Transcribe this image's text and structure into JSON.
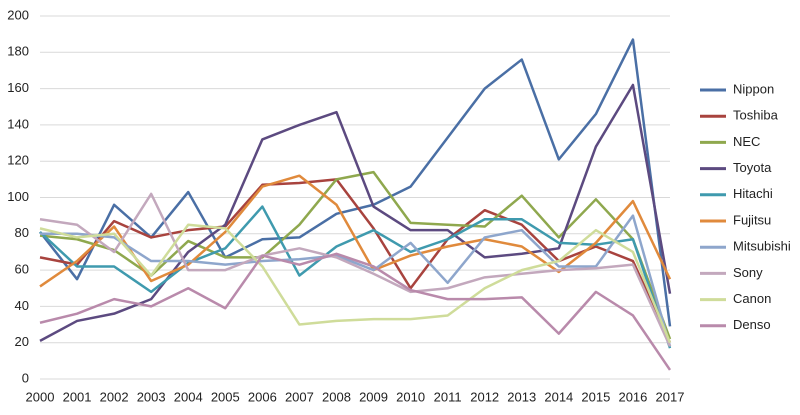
{
  "chart_data": {
    "type": "line",
    "categories": [
      "2000",
      "2001",
      "2002",
      "2003",
      "2004",
      "2005",
      "2006",
      "2007",
      "2008",
      "2009",
      "2010",
      "2011",
      "2012",
      "2013",
      "2014",
      "2015",
      "2016",
      "2017"
    ],
    "ylim": [
      0,
      200
    ],
    "yticks": [
      0,
      20,
      40,
      60,
      80,
      100,
      120,
      140,
      160,
      180,
      200
    ],
    "grid": true,
    "legend": "right",
    "series": [
      {
        "name": "Nippon",
        "color": "#4a6fa5",
        "values": [
          81,
          55,
          96,
          78,
          103,
          67,
          77,
          78,
          91,
          96,
          106,
          133,
          160,
          176,
          121,
          146,
          187,
          29
        ]
      },
      {
        "name": "Toshiba",
        "color": "#a8433e",
        "values": [
          67,
          63,
          87,
          78,
          82,
          84,
          107,
          108,
          110,
          83,
          50,
          77,
          93,
          85,
          65,
          73,
          65,
          20
        ]
      },
      {
        "name": "NEC",
        "color": "#8fa84e",
        "values": [
          79,
          77,
          71,
          57,
          76,
          67,
          67,
          85,
          110,
          114,
          86,
          85,
          84,
          101,
          78,
          99,
          77,
          22
        ]
      },
      {
        "name": "Toyota",
        "color": "#5c4a80",
        "values": [
          21,
          32,
          36,
          44,
          70,
          85,
          132,
          140,
          147,
          95,
          82,
          82,
          67,
          69,
          72,
          128,
          162,
          47
        ]
      },
      {
        "name": "Hitachi",
        "color": "#3f9aae",
        "values": [
          81,
          62,
          62,
          48,
          64,
          72,
          95,
          57,
          73,
          82,
          70,
          77,
          88,
          88,
          75,
          74,
          77,
          17
        ]
      },
      {
        "name": "Fujitsu",
        "color": "#e08a3c",
        "values": [
          51,
          65,
          84,
          54,
          63,
          81,
          106,
          112,
          96,
          60,
          68,
          73,
          77,
          73,
          59,
          75,
          98,
          55
        ]
      },
      {
        "name": "Mitsubishi",
        "color": "#8ea6cc",
        "values": [
          80,
          80,
          78,
          65,
          65,
          63,
          65,
          66,
          68,
          60,
          75,
          53,
          78,
          82,
          62,
          62,
          90,
          18
        ]
      },
      {
        "name": "Sony",
        "color": "#c3a8bd",
        "values": [
          88,
          85,
          70,
          102,
          60,
          60,
          68,
          72,
          67,
          58,
          48,
          50,
          56,
          58,
          60,
          61,
          63,
          18
        ]
      },
      {
        "name": "Canon",
        "color": "#cfdc9a",
        "values": [
          83,
          78,
          80,
          57,
          85,
          83,
          62,
          30,
          32,
          33,
          33,
          35,
          50,
          60,
          65,
          82,
          70,
          20
        ]
      },
      {
        "name": "Denso",
        "color": "#b98aab",
        "values": [
          31,
          36,
          44,
          40,
          50,
          39,
          68,
          63,
          69,
          62,
          49,
          44,
          44,
          45,
          25,
          48,
          35,
          5
        ]
      }
    ]
  }
}
